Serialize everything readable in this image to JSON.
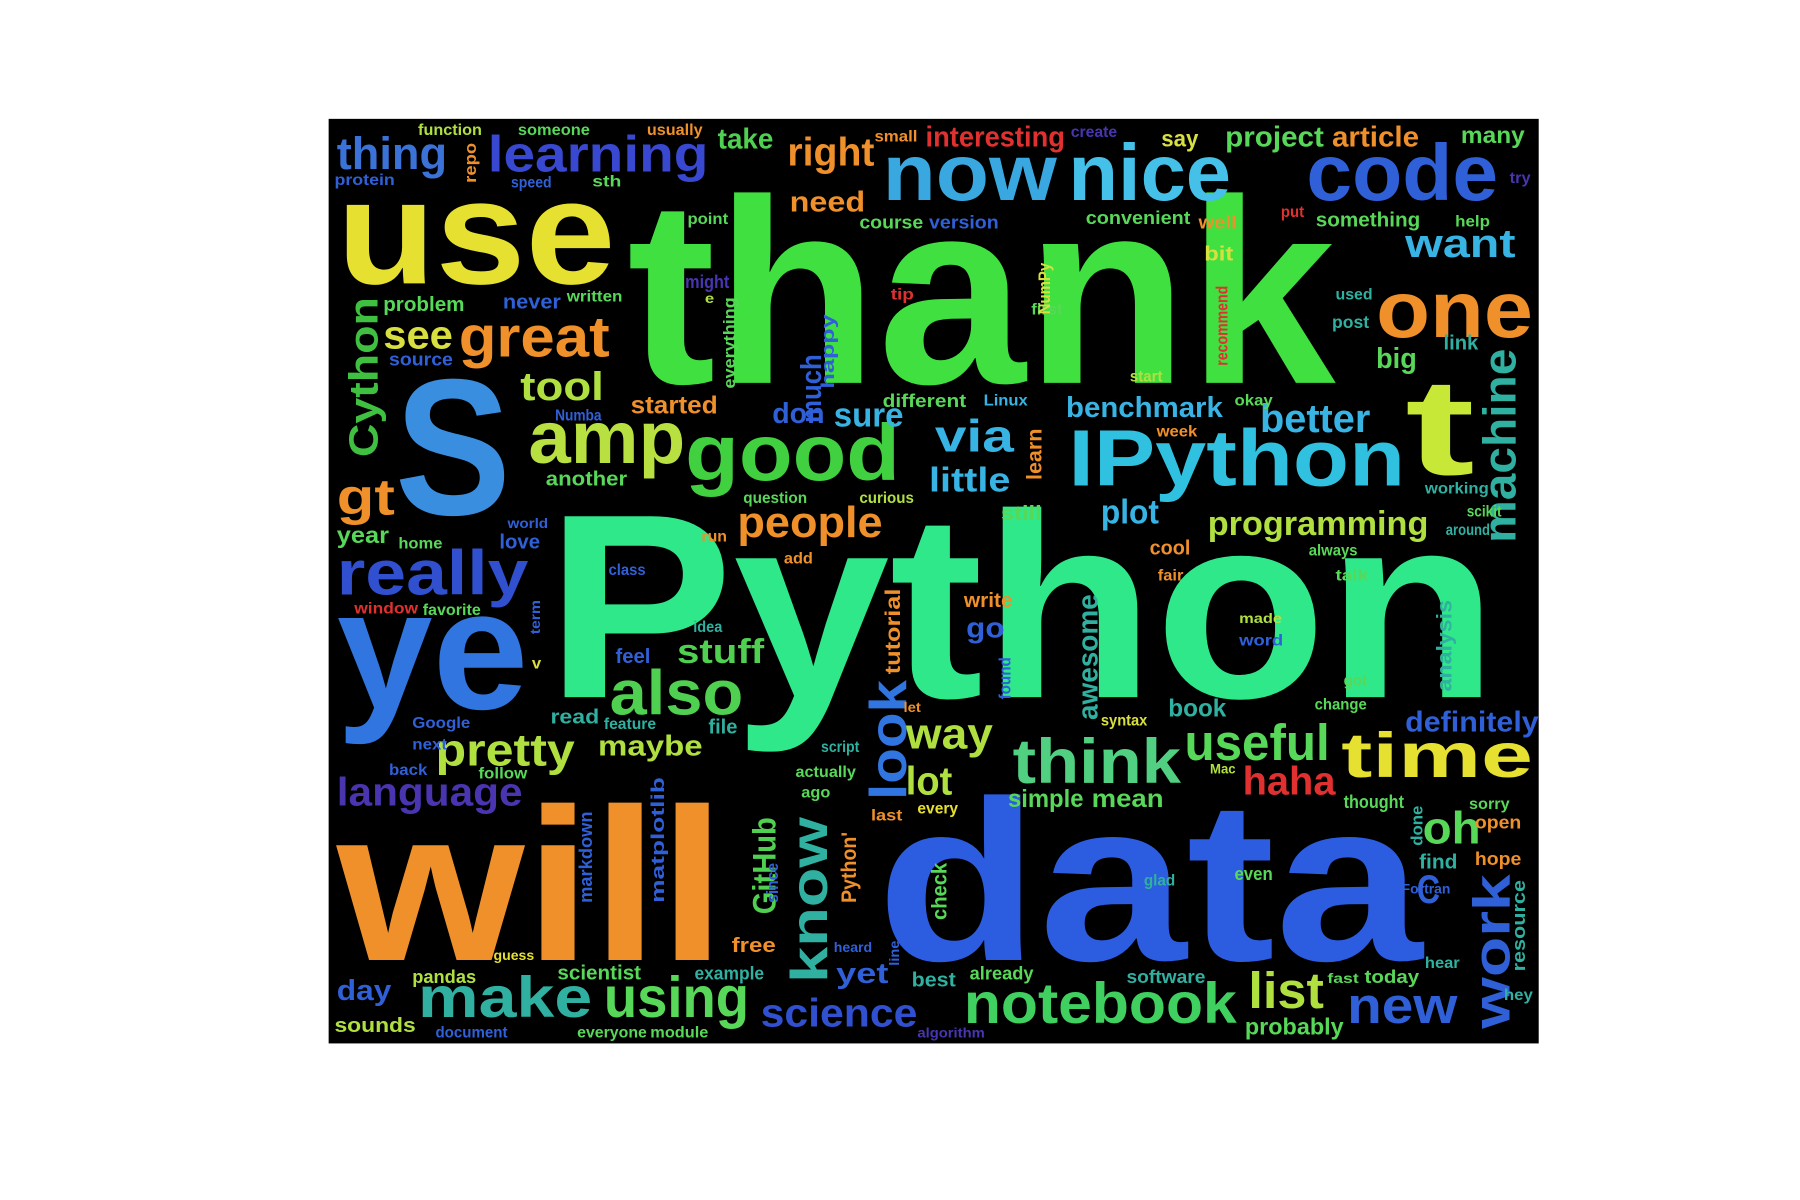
{
  "words": [
    {
      "text": "thank",
      "color": "#3fe03f"
    },
    {
      "text": "Python",
      "color": "#2ee88a"
    },
    {
      "text": "data",
      "color": "#2c5ce0"
    },
    {
      "text": "will",
      "color": "#f0902a"
    },
    {
      "text": "use",
      "color": "#e6e030"
    },
    {
      "text": "S",
      "color": "#3a8ee0"
    },
    {
      "text": "ye",
      "color": "#3075e0"
    },
    {
      "text": "t",
      "color": "#c8e838"
    },
    {
      "text": "now",
      "color": "#3aa8e0"
    },
    {
      "text": "nice",
      "color": "#45c0e8"
    },
    {
      "text": "code",
      "color": "#3060d8"
    },
    {
      "text": "learning",
      "color": "#3848d0"
    },
    {
      "text": "thing",
      "color": "#3b72d8"
    },
    {
      "text": "one",
      "color": "#f0902a"
    },
    {
      "text": "great",
      "color": "#f0902a"
    },
    {
      "text": "amp",
      "color": "#b8e040"
    },
    {
      "text": "good",
      "color": "#40d040"
    },
    {
      "text": "IPython",
      "color": "#30c0e0"
    },
    {
      "text": "really",
      "color": "#3050d0"
    },
    {
      "text": "machine",
      "color": "#30b0a0"
    },
    {
      "text": "Cython",
      "color": "#40c040"
    },
    {
      "text": "gt",
      "color": "#f0902a"
    },
    {
      "text": "see",
      "color": "#d8e040"
    },
    {
      "text": "tool",
      "color": "#b0e040"
    },
    {
      "text": "via",
      "color": "#38b4e4"
    },
    {
      "text": "better",
      "color": "#38b4e4"
    },
    {
      "text": "people",
      "color": "#f0902a"
    },
    {
      "text": "also",
      "color": "#50d050"
    },
    {
      "text": "stuff",
      "color": "#50d050"
    },
    {
      "text": "way",
      "color": "#b0e040"
    },
    {
      "text": "think",
      "color": "#50d080"
    },
    {
      "text": "useful",
      "color": "#58d858"
    },
    {
      "text": "time",
      "color": "#e6e030"
    },
    {
      "text": "pretty",
      "color": "#b0e040"
    },
    {
      "text": "language",
      "color": "#4a34b0"
    },
    {
      "text": "make",
      "color": "#30b0a0"
    },
    {
      "text": "using",
      "color": "#58d858"
    },
    {
      "text": "notebook",
      "color": "#40d060"
    },
    {
      "text": "list",
      "color": "#b0e040"
    },
    {
      "text": "new",
      "color": "#3060d8"
    },
    {
      "text": "work",
      "color": "#3060d8"
    },
    {
      "text": "science",
      "color": "#3050d0"
    },
    {
      "text": "look",
      "color": "#3075e0"
    },
    {
      "text": "know",
      "color": "#30b0a0"
    },
    {
      "text": "GitHub",
      "color": "#50d050"
    },
    {
      "text": "lot",
      "color": "#b0e040"
    },
    {
      "text": "oh",
      "color": "#58d858"
    },
    {
      "text": "haha",
      "color": "#e03030"
    },
    {
      "text": "C",
      "color": "#3060d8"
    },
    {
      "text": "definitely",
      "color": "#3060d8"
    },
    {
      "text": "plot",
      "color": "#38b4e4"
    },
    {
      "text": "programming",
      "color": "#b0e040"
    },
    {
      "text": "benchmark",
      "color": "#38b4e4"
    },
    {
      "text": "little",
      "color": "#38b4e4"
    },
    {
      "text": "sure",
      "color": "#38b4e4"
    },
    {
      "text": "much",
      "color": "#3060d8"
    },
    {
      "text": "don",
      "color": "#3060d8"
    },
    {
      "text": "started",
      "color": "#f0902a"
    },
    {
      "text": "right",
      "color": "#f0902a"
    },
    {
      "text": "need",
      "color": "#f0902a"
    },
    {
      "text": "take",
      "color": "#50d050"
    },
    {
      "text": "interesting",
      "color": "#e03030"
    },
    {
      "text": "project",
      "color": "#58d858"
    },
    {
      "text": "article",
      "color": "#f0902a"
    },
    {
      "text": "many",
      "color": "#58d858"
    },
    {
      "text": "say",
      "color": "#d8e040"
    },
    {
      "text": "want",
      "color": "#38b4e4"
    },
    {
      "text": "something",
      "color": "#58d858"
    },
    {
      "text": "convenient",
      "color": "#58d858"
    },
    {
      "text": "course",
      "color": "#58d858"
    },
    {
      "text": "version",
      "color": "#3060d8"
    },
    {
      "text": "big",
      "color": "#58d858"
    },
    {
      "text": "link",
      "color": "#30b0a0"
    },
    {
      "text": "post",
      "color": "#30b0a0"
    },
    {
      "text": "used",
      "color": "#30b0a0"
    },
    {
      "text": "tip",
      "color": "#e03030"
    },
    {
      "text": "first",
      "color": "#58d858"
    },
    {
      "text": "bit",
      "color": "#d8e040"
    },
    {
      "text": "well",
      "color": "#f0902a"
    },
    {
      "text": "put",
      "color": "#e03030"
    },
    {
      "text": "help",
      "color": "#58d858"
    },
    {
      "text": "try",
      "color": "#4a34b0"
    },
    {
      "text": "small",
      "color": "#f0902a"
    },
    {
      "text": "create",
      "color": "#4a34b0"
    },
    {
      "text": "function",
      "color": "#b0e040"
    },
    {
      "text": "someone",
      "color": "#58d858"
    },
    {
      "text": "usually",
      "color": "#f0902a"
    },
    {
      "text": "protein",
      "color": "#3060d8"
    },
    {
      "text": "repo",
      "color": "#f0902a"
    },
    {
      "text": "speed",
      "color": "#3060d8"
    },
    {
      "text": "sth",
      "color": "#58d858"
    },
    {
      "text": "point",
      "color": "#58d858"
    },
    {
      "text": "might",
      "color": "#4a34b0"
    },
    {
      "text": "e",
      "color": "#b0e040"
    },
    {
      "text": "everything",
      "color": "#58d858"
    },
    {
      "text": "happy",
      "color": "#3060d8"
    },
    {
      "text": "written",
      "color": "#58d858"
    },
    {
      "text": "problem",
      "color": "#58d858"
    },
    {
      "text": "never",
      "color": "#3060d8"
    },
    {
      "text": "source",
      "color": "#3060d8"
    },
    {
      "text": "Numba",
      "color": "#3060d8"
    },
    {
      "text": "different",
      "color": "#58d858"
    },
    {
      "text": "Linux",
      "color": "#38b4e4"
    },
    {
      "text": "learn",
      "color": "#f0902a"
    },
    {
      "text": "okay",
      "color": "#58d858"
    },
    {
      "text": "week",
      "color": "#f0902a"
    },
    {
      "text": "start",
      "color": "#b0e040"
    },
    {
      "text": "another",
      "color": "#58d858"
    },
    {
      "text": "question",
      "color": "#58d858"
    },
    {
      "text": "curious",
      "color": "#b0e040"
    },
    {
      "text": "still",
      "color": "#58d858"
    },
    {
      "text": "working",
      "color": "#30b0a0"
    },
    {
      "text": "scikit",
      "color": "#58d858"
    },
    {
      "text": "around",
      "color": "#30b0a0"
    },
    {
      "text": "year",
      "color": "#58d858"
    },
    {
      "text": "home",
      "color": "#58d858"
    },
    {
      "text": "love",
      "color": "#3060d8"
    },
    {
      "text": "world",
      "color": "#3060d8"
    },
    {
      "text": "run",
      "color": "#f0902a"
    },
    {
      "text": "add",
      "color": "#f0902a"
    },
    {
      "text": "class",
      "color": "#3060d8"
    },
    {
      "text": "cool",
      "color": "#f0902a"
    },
    {
      "text": "always",
      "color": "#58d858"
    },
    {
      "text": "fair",
      "color": "#f0902a"
    },
    {
      "text": "talk",
      "color": "#58d858"
    },
    {
      "text": "window",
      "color": "#e03030"
    },
    {
      "text": "favorite",
      "color": "#58d858"
    },
    {
      "text": "term",
      "color": "#3060d8"
    },
    {
      "text": "tutorial",
      "color": "#f0902a"
    },
    {
      "text": "write",
      "color": "#f0902a"
    },
    {
      "text": "go",
      "color": "#3060d8"
    },
    {
      "text": "made",
      "color": "#b0e040"
    },
    {
      "text": "word",
      "color": "#3060d8"
    },
    {
      "text": "idea",
      "color": "#30b0a0"
    },
    {
      "text": "feel",
      "color": "#3060d8"
    },
    {
      "text": "v",
      "color": "#d8e040"
    },
    {
      "text": "awesome",
      "color": "#30b0a0"
    },
    {
      "text": "found",
      "color": "#3060d8"
    },
    {
      "text": "analysis",
      "color": "#30b0a0"
    },
    {
      "text": "got",
      "color": "#58d858"
    },
    {
      "text": "book",
      "color": "#30b0a0"
    },
    {
      "text": "syntax",
      "color": "#d8e040"
    },
    {
      "text": "change",
      "color": "#58d858"
    },
    {
      "text": "let",
      "color": "#f0902a"
    },
    {
      "text": "Google",
      "color": "#3060d8"
    },
    {
      "text": "read",
      "color": "#30b0a0"
    },
    {
      "text": "feature",
      "color": "#30b0a0"
    },
    {
      "text": "file",
      "color": "#30b0a0"
    },
    {
      "text": "maybe",
      "color": "#b0e040"
    },
    {
      "text": "next",
      "color": "#3060d8"
    },
    {
      "text": "back",
      "color": "#3060d8"
    },
    {
      "text": "follow",
      "color": "#58d858"
    },
    {
      "text": "script",
      "color": "#30b0a0"
    },
    {
      "text": "actually",
      "color": "#58d858"
    },
    {
      "text": "ago",
      "color": "#58d858"
    },
    {
      "text": "last",
      "color": "#f0902a"
    },
    {
      "text": "every",
      "color": "#e6e030"
    },
    {
      "text": "simple",
      "color": "#58d858"
    },
    {
      "text": "mean",
      "color": "#58d858"
    },
    {
      "text": "Mac",
      "color": "#b0e040"
    },
    {
      "text": "thought",
      "color": "#58d858"
    },
    {
      "text": "sorry",
      "color": "#58d858"
    },
    {
      "text": "open",
      "color": "#f0902a"
    },
    {
      "text": "done",
      "color": "#30b0a0"
    },
    {
      "text": "matplotlib",
      "color": "#3060d8"
    },
    {
      "text": "markdown",
      "color": "#3060d8"
    },
    {
      "text": "since",
      "color": "#3060d8"
    },
    {
      "text": "Python'",
      "color": "#f0902a"
    },
    {
      "text": "check",
      "color": "#58d858"
    },
    {
      "text": "glad",
      "color": "#30b0a0"
    },
    {
      "text": "even",
      "color": "#58d858"
    },
    {
      "text": "find",
      "color": "#30b0a0"
    },
    {
      "text": "hope",
      "color": "#f0902a"
    },
    {
      "text": "resource",
      "color": "#30b0a0"
    },
    {
      "text": "Fortran",
      "color": "#3060d8"
    },
    {
      "text": "free",
      "color": "#f0902a"
    },
    {
      "text": "heard",
      "color": "#3060d8"
    },
    {
      "text": "line",
      "color": "#3060d8"
    },
    {
      "text": "guess",
      "color": "#e6e030"
    },
    {
      "text": "pandas",
      "color": "#b0e040"
    },
    {
      "text": "scientist",
      "color": "#58d858"
    },
    {
      "text": "example",
      "color": "#30b0a0"
    },
    {
      "text": "yet",
      "color": "#3060d8"
    },
    {
      "text": "best",
      "color": "#30b0a0"
    },
    {
      "text": "already",
      "color": "#58d858"
    },
    {
      "text": "software",
      "color": "#30b0a0"
    },
    {
      "text": "fast",
      "color": "#58d858"
    },
    {
      "text": "today",
      "color": "#58d858"
    },
    {
      "text": "hear",
      "color": "#30b0a0"
    },
    {
      "text": "hey",
      "color": "#30b0a0"
    },
    {
      "text": "day",
      "color": "#3060d8"
    },
    {
      "text": "sounds",
      "color": "#b0e040"
    },
    {
      "text": "document",
      "color": "#3060d8"
    },
    {
      "text": "everyone",
      "color": "#58d858"
    },
    {
      "text": "module",
      "color": "#58d858"
    },
    {
      "text": "algorithm",
      "color": "#4a34b0"
    },
    {
      "text": "probably",
      "color": "#58d858"
    },
    {
      "text": "NumPy",
      "color": "#d8e040"
    },
    {
      "text": "recommend",
      "color": "#e03030"
    }
  ]
}
